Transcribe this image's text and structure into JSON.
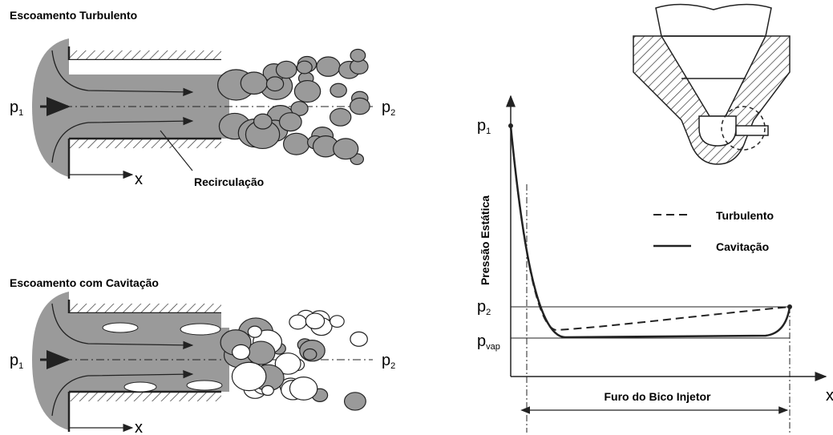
{
  "top_diagram": {
    "title": "Escoamento Turbulento",
    "inlet_label": {
      "base": "p",
      "sub": "1"
    },
    "outlet_label": {
      "base": "p",
      "sub": "2"
    },
    "axis_label": "x",
    "annotation": "Recirculação"
  },
  "bottom_diagram": {
    "title": "Escoamento com Cavitação",
    "inlet_label": {
      "base": "p",
      "sub": "1"
    },
    "outlet_label": {
      "base": "p",
      "sub": "2"
    },
    "axis_label": "x"
  },
  "pressure_plot": {
    "y_axis_title": "Pressão Estática",
    "x_axis_label": "x",
    "levels": [
      {
        "base": "p",
        "sub": "1"
      },
      {
        "base": "p",
        "sub": "2"
      },
      {
        "base": "p",
        "sub": "vap"
      }
    ],
    "legend": [
      "Turbulento",
      "Cavitação"
    ],
    "span_label": "Furo do Bico Injetor"
  }
}
